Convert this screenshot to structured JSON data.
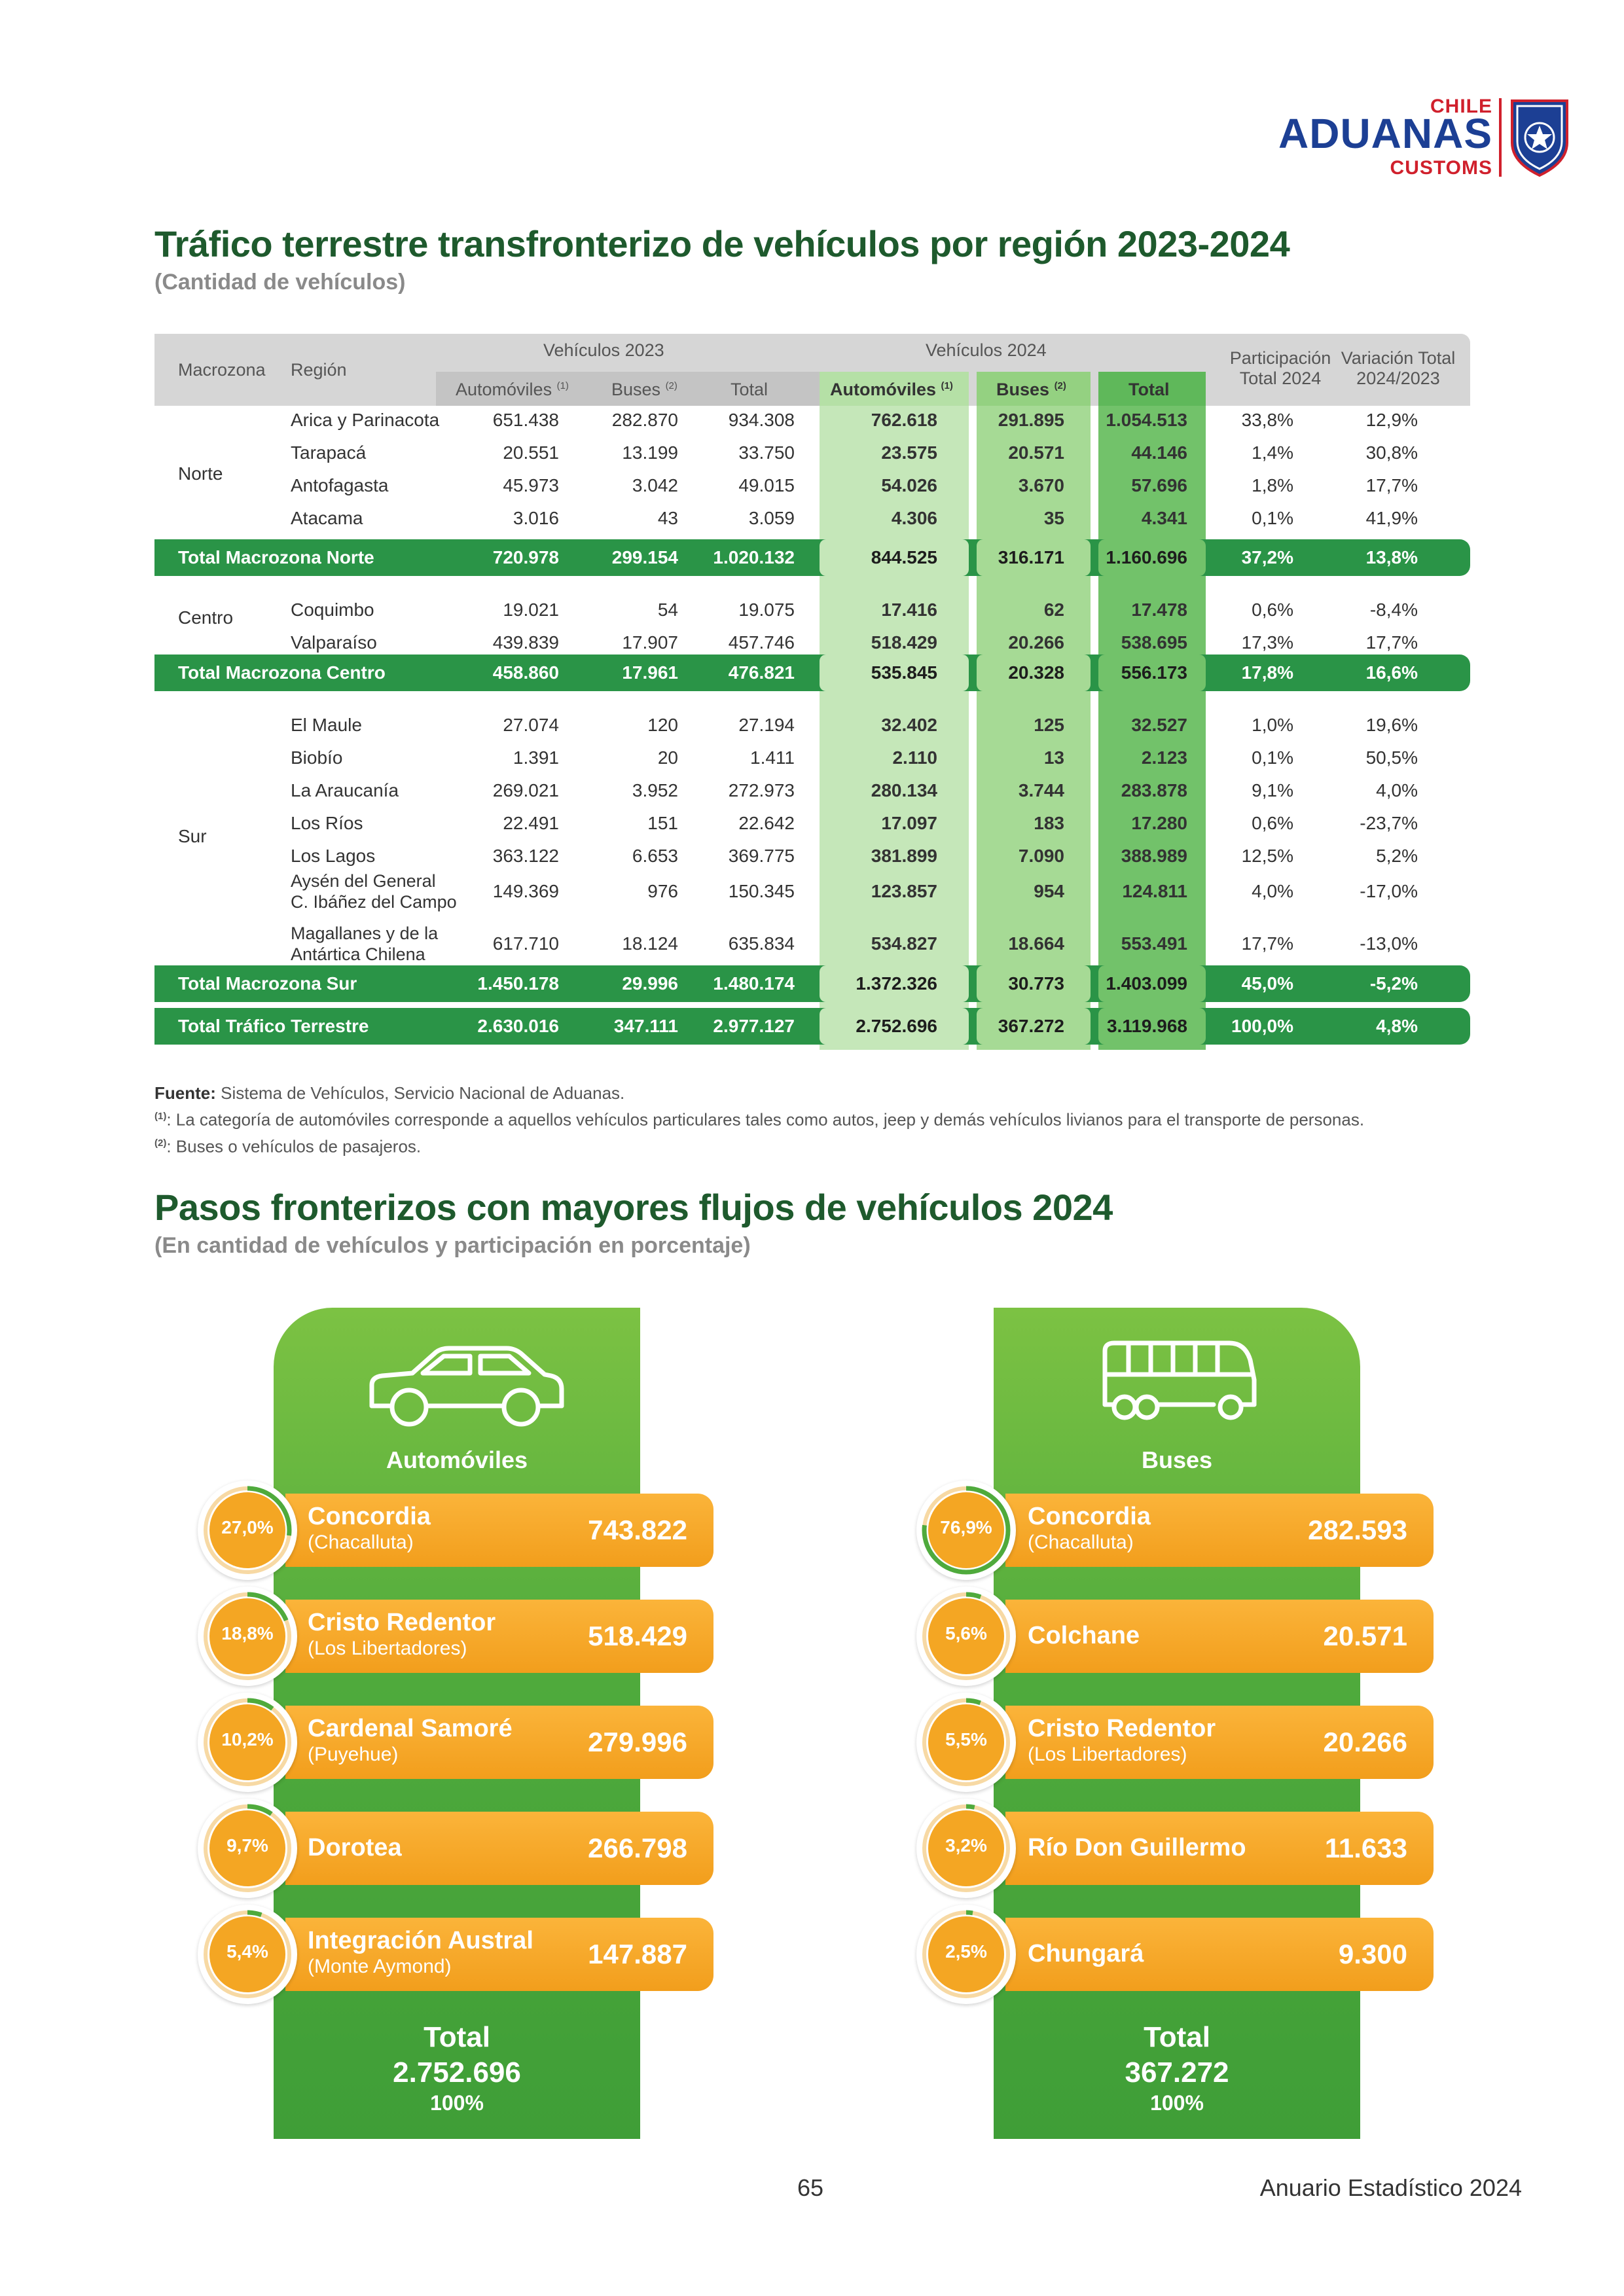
{
  "logo": {
    "chile": "CHILE",
    "aduanas": "ADUANAS",
    "customs": "CUSTOMS",
    "badge_top": "ADUANAS",
    "badge_bottom": "CHILE"
  },
  "title1": "Tráfico terrestre transfronterizo de vehículos por región 2023-2024",
  "subtitle1": "(Cantidad de vehículos)",
  "table": {
    "headers": {
      "macrozona": "Macrozona",
      "region": "Región",
      "v2023": "Vehículos 2023",
      "v2024": "Vehículos 2024",
      "autos": "Automóviles",
      "autos_sup": "(1)",
      "buses": "Buses",
      "buses_sup": "(2)",
      "total": "Total",
      "part1": "Participación",
      "part2": "Total 2024",
      "var1": "Variación Total",
      "var2": "2024/2023"
    },
    "zones": {
      "norte": "Norte",
      "centro": "Centro",
      "sur": "Sur"
    },
    "rows": [
      {
        "region": "Arica y Parinacota",
        "a23": "651.438",
        "b23": "282.870",
        "t23": "934.308",
        "a24": "762.618",
        "b24": "291.895",
        "t24": "1.054.513",
        "part": "33,8%",
        "var": "12,9%"
      },
      {
        "region": "Tarapacá",
        "a23": "20.551",
        "b23": "13.199",
        "t23": "33.750",
        "a24": "23.575",
        "b24": "20.571",
        "t24": "44.146",
        "part": "1,4%",
        "var": "30,8%"
      },
      {
        "region": "Antofagasta",
        "a23": "45.973",
        "b23": "3.042",
        "t23": "49.015",
        "a24": "54.026",
        "b24": "3.670",
        "t24": "57.696",
        "part": "1,8%",
        "var": "17,7%"
      },
      {
        "region": "Atacama",
        "a23": "3.016",
        "b23": "43",
        "t23": "3.059",
        "a24": "4.306",
        "b24": "35",
        "t24": "4.341",
        "part": "0,1%",
        "var": "41,9%"
      },
      {
        "region": "Coquimbo",
        "a23": "19.021",
        "b23": "54",
        "t23": "19.075",
        "a24": "17.416",
        "b24": "62",
        "t24": "17.478",
        "part": "0,6%",
        "var": "-8,4%"
      },
      {
        "region": "Valparaíso",
        "a23": "439.839",
        "b23": "17.907",
        "t23": "457.746",
        "a24": "518.429",
        "b24": "20.266",
        "t24": "538.695",
        "part": "17,3%",
        "var": "17,7%"
      },
      {
        "region": "El Maule",
        "a23": "27.074",
        "b23": "120",
        "t23": "27.194",
        "a24": "32.402",
        "b24": "125",
        "t24": "32.527",
        "part": "1,0%",
        "var": "19,6%"
      },
      {
        "region": "Biobío",
        "a23": "1.391",
        "b23": "20",
        "t23": "1.411",
        "a24": "2.110",
        "b24": "13",
        "t24": "2.123",
        "part": "0,1%",
        "var": "50,5%"
      },
      {
        "region": "La Araucanía",
        "a23": "269.021",
        "b23": "3.952",
        "t23": "272.973",
        "a24": "280.134",
        "b24": "3.744",
        "t24": "283.878",
        "part": "9,1%",
        "var": "4,0%"
      },
      {
        "region": "Los Ríos",
        "a23": "22.491",
        "b23": "151",
        "t23": "22.642",
        "a24": "17.097",
        "b24": "183",
        "t24": "17.280",
        "part": "0,6%",
        "var": "-23,7%"
      },
      {
        "region": "Los Lagos",
        "a23": "363.122",
        "b23": "6.653",
        "t23": "369.775",
        "a24": "381.899",
        "b24": "7.090",
        "t24": "388.989",
        "part": "12,5%",
        "var": "5,2%"
      },
      {
        "region": "Aysén del General",
        "region2": "C. Ibáñez del Campo",
        "a23": "149.369",
        "b23": "976",
        "t23": "150.345",
        "a24": "123.857",
        "b24": "954",
        "t24": "124.811",
        "part": "4,0%",
        "var": "-17,0%"
      },
      {
        "region": "Magallanes y de la",
        "region2": "Antártica Chilena",
        "a23": "617.710",
        "b23": "18.124",
        "t23": "635.834",
        "a24": "534.827",
        "b24": "18.664",
        "t24": "553.491",
        "part": "17,7%",
        "var": "-13,0%"
      }
    ],
    "totals": [
      {
        "label": "Total Macrozona Norte",
        "a23": "720.978",
        "b23": "299.154",
        "t23": "1.020.132",
        "a24": "844.525",
        "b24": "316.171",
        "t24": "1.160.696",
        "part": "37,2%",
        "var": "13,8%"
      },
      {
        "label": "Total Macrozona Centro",
        "a23": "458.860",
        "b23": "17.961",
        "t23": "476.821",
        "a24": "535.845",
        "b24": "20.328",
        "t24": "556.173",
        "part": "17,8%",
        "var": "16,6%"
      },
      {
        "label": "Total Macrozona Sur",
        "a23": "1.450.178",
        "b23": "29.996",
        "t23": "1.480.174",
        "a24": "1.372.326",
        "b24": "30.773",
        "t24": "1.403.099",
        "part": "45,0%",
        "var": "-5,2%"
      },
      {
        "label": "Total Tráfico Terrestre",
        "a23": "2.630.016",
        "b23": "347.111",
        "t23": "2.977.127",
        "a24": "2.752.696",
        "b24": "367.272",
        "t24": "3.119.968",
        "part": "100,0%",
        "var": "4,8%"
      }
    ]
  },
  "notes": {
    "fuente_label": "Fuente:",
    "fuente": " Sistema de Vehículos, Servicio Nacional de Aduanas.",
    "n1_sup": "(1)",
    "n1": ": La categoría de automóviles corresponde a aquellos vehículos particulares tales como autos, jeep y demás vehículos livianos para el transporte de personas.",
    "n2_sup": "(2)",
    "n2": ": Buses o vehículos de pasajeros."
  },
  "title2": "Pasos fronterizos con mayores flujos de vehículos 2024",
  "subtitle2": "(En cantidad de vehículos y participación en porcentaje)",
  "autos_panel": {
    "label": "Automóviles",
    "items": [
      {
        "pct": "27,0%",
        "pct_value": 27.0,
        "name": "Concordia",
        "sub": "(Chacalluta)",
        "value": "743.822"
      },
      {
        "pct": "18,8%",
        "pct_value": 18.8,
        "name": "Cristo Redentor",
        "sub": "(Los Libertadores)",
        "value": "518.429"
      },
      {
        "pct": "10,2%",
        "pct_value": 10.2,
        "name": "Cardenal Samoré",
        "sub": "(Puyehue)",
        "value": "279.996"
      },
      {
        "pct": "9,7%",
        "pct_value": 9.7,
        "name": "Dorotea",
        "sub": "",
        "value": "266.798"
      },
      {
        "pct": "5,4%",
        "pct_value": 5.4,
        "name": "Integración Austral",
        "sub": "(Monte Aymond)",
        "value": "147.887"
      }
    ],
    "total_label": "Total",
    "total_value": "2.752.696",
    "total_pct": "100%"
  },
  "buses_panel": {
    "label": "Buses",
    "items": [
      {
        "pct": "76,9%",
        "pct_value": 76.9,
        "name": "Concordia",
        "sub": "(Chacalluta)",
        "value": "282.593"
      },
      {
        "pct": "5,6%",
        "pct_value": 5.6,
        "name": "Colchane",
        "sub": "",
        "value": "20.571"
      },
      {
        "pct": "5,5%",
        "pct_value": 5.5,
        "name": "Cristo Redentor",
        "sub": "(Los Libertadores)",
        "value": "20.266"
      },
      {
        "pct": "3,2%",
        "pct_value": 3.2,
        "name": "Río Don Guillermo",
        "sub": "",
        "value": "11.633"
      },
      {
        "pct": "2,5%",
        "pct_value": 2.5,
        "name": "Chungará",
        "sub": "",
        "value": "9.300"
      }
    ],
    "total_label": "Total",
    "total_value": "367.272",
    "total_pct": "100%"
  },
  "footer": {
    "page": "65",
    "publication": "Anuario Estadístico 2024"
  },
  "colors": {
    "dark_green": "#1e5a2d",
    "green": "#2a9447",
    "orange": "#f29e1c",
    "blue": "#1c3f94",
    "red": "#d0202c"
  }
}
